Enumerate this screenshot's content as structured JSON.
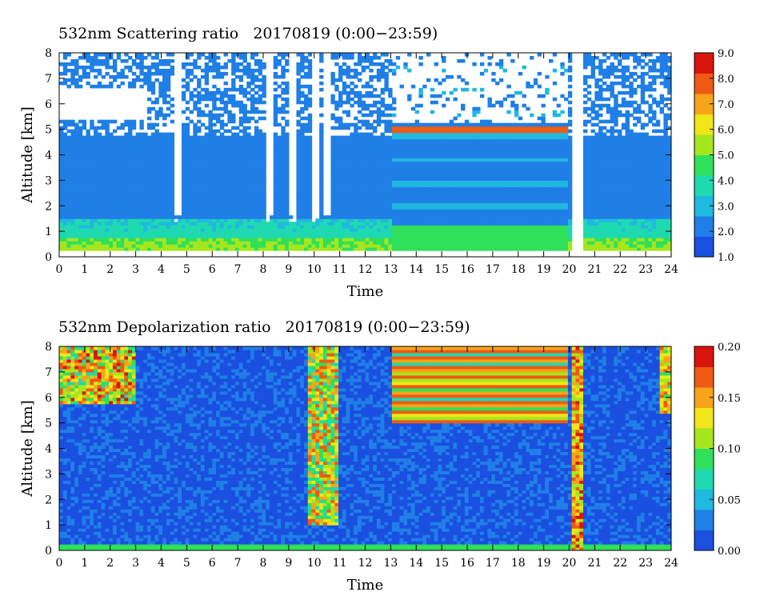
{
  "colors": {
    "colormap": [
      "#1a4fe0",
      "#1f7fe6",
      "#20b9e0",
      "#1fd9b0",
      "#2ee05a",
      "#a6e61f",
      "#f0e619",
      "#f7a41a",
      "#ef5a14",
      "#d9140c"
    ],
    "missing": "#ffffff",
    "frame": "#000000"
  },
  "chart_data": [
    {
      "type": "heatmap",
      "title": "532nm Scattering ratio   20170819 (0:00−23:59)",
      "xlabel": "Time",
      "ylabel": "Altitude [km]",
      "xlim": [
        0,
        24
      ],
      "ylim": [
        0,
        8
      ],
      "x_ticks": [
        "0",
        "1",
        "2",
        "3",
        "4",
        "5",
        "6",
        "7",
        "8",
        "9",
        "10",
        "11",
        "12",
        "13",
        "14",
        "15",
        "16",
        "17",
        "18",
        "19",
        "20",
        "21",
        "22",
        "23",
        "24"
      ],
      "y_ticks": [
        "0",
        "1",
        "2",
        "3",
        "4",
        "5",
        "6",
        "7",
        "8"
      ],
      "colorbar": {
        "min": 1.0,
        "max": 9.0,
        "tick_labels": [
          "1.0",
          "2.0",
          "3.0",
          "4.0",
          "5.0",
          "6.0",
          "7.0",
          "8.0",
          "9.0"
        ]
      },
      "features": {
        "boundary_layer_top_km": 1.5,
        "cloud_base_km_0_to_3_5h": 5.2,
        "elevated_layer_13_to_20h_km": 5.0,
        "data_gap_hour": 20.3,
        "precipitation_streaks_hours": [
          4.6,
          8.3,
          9.2,
          10.0,
          10.5
        ]
      }
    },
    {
      "type": "heatmap",
      "title": "532nm Depolarization ratio   20170819 (0:00−23:59)",
      "xlabel": "Time",
      "ylabel": "Altitude [km]",
      "xlim": [
        0,
        24
      ],
      "ylim": [
        0,
        8
      ],
      "x_ticks": [
        "0",
        "1",
        "2",
        "3",
        "4",
        "5",
        "6",
        "7",
        "8",
        "9",
        "10",
        "11",
        "12",
        "13",
        "14",
        "15",
        "16",
        "17",
        "18",
        "19",
        "20",
        "21",
        "22",
        "23",
        "24"
      ],
      "y_ticks": [
        "0",
        "1",
        "2",
        "3",
        "4",
        "5",
        "6",
        "7",
        "8"
      ],
      "colorbar": {
        "min": 0.0,
        "max": 0.2,
        "tick_labels": [
          "0.00",
          "0.05",
          "0.10",
          "0.15",
          "0.20"
        ]
      },
      "features": {
        "ice_cloud_base_km_0_to_3h": 5.7,
        "elevated_layer_13_to_20h_km": 5.0,
        "high_depol_column_hour": 20.3
      }
    }
  ]
}
